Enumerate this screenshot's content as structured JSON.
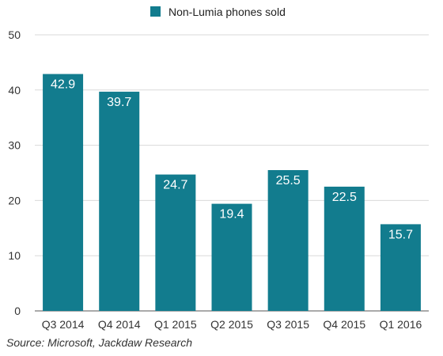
{
  "chart_data": {
    "type": "bar",
    "categories": [
      "Q3 2014",
      "Q4 2014",
      "Q1 2015",
      "Q2 2015",
      "Q3 2015",
      "Q4 2015",
      "Q1 2016"
    ],
    "series": [
      {
        "name": "Non-Lumia phones sold",
        "values": [
          42.9,
          39.7,
          24.7,
          19.4,
          25.5,
          22.5,
          15.7
        ]
      }
    ],
    "data_labels": [
      "42.9",
      "39.7",
      "24.7",
      "19.4",
      "25.5",
      "22.5",
      "15.7"
    ],
    "ylim": [
      0,
      50
    ],
    "yticks": [
      0,
      10,
      20,
      30,
      40,
      50
    ],
    "grid": true,
    "legend_position": "top-center",
    "colors": {
      "bar": "#127c8e",
      "grid": "#d9d9d9"
    },
    "source": "Source: Microsoft, Jackdaw Research"
  }
}
